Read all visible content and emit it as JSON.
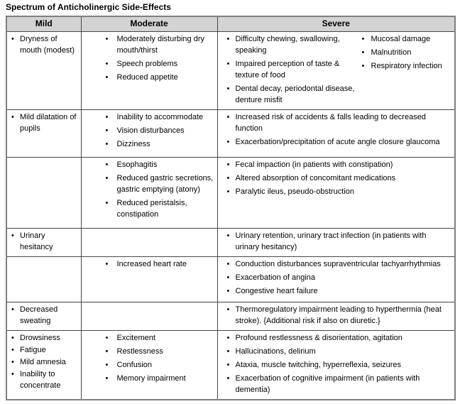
{
  "title": "Spectrum of Anticholinergic Side-Effects",
  "colors": {
    "header_bg": "#d3d3d3",
    "border_outer": "#7f7f7f",
    "border_inner": "#454545",
    "text": "#000000"
  },
  "table": {
    "headers": [
      "Mild",
      "Moderate",
      "Severe"
    ],
    "rows": [
      {
        "mild": [
          "Dryness of mouth (modest)"
        ],
        "moderate": [
          "Moderately disturbing dry mouth/thirst",
          "Speech problems",
          "Reduced appetite"
        ],
        "severe": [
          "Difficulty chewing, swallowing, speaking",
          "Impaired perception of taste & texture of food",
          "Dental decay, periodontal disease, denture misfit"
        ],
        "severe_col2": [
          "Mucosal damage",
          "Malnutrition",
          "Respiratory infection"
        ]
      },
      {
        "mild": [
          "Mild dilatation of pupils"
        ],
        "moderate": [
          "Inability to accommodate",
          "Vision disturbances",
          "Dizziness"
        ],
        "severe": [
          "Increased risk of accidents & falls leading to decreased function",
          "Exacerbation/precipitation of acute angle closure glaucoma"
        ]
      },
      {
        "mild": [],
        "moderate": [
          "Esophagitis",
          "Reduced gastric secretions, gastric emptying (atony)",
          "Reduced peristalsis, constipation"
        ],
        "severe": [
          "Fecal impaction (in patients with constipation)",
          "Altered absorption of concomitant medications",
          "Paralytic ileus, pseudo-obstruction"
        ]
      },
      {
        "mild": [
          "Urinary hesitancy"
        ],
        "moderate": [],
        "severe": [
          "Urinary retention, urinary tract infection (in patients with urinary hesitancy)"
        ]
      },
      {
        "mild": [],
        "moderate": [
          "Increased heart rate"
        ],
        "severe": [
          "Conduction disturbances supraventricular tachyarrhythmias",
          "Exacerbation of angina",
          "Congestive heart failure"
        ]
      },
      {
        "mild": [
          "Decreased sweating"
        ],
        "moderate": [],
        "severe": [
          "Thermoregulatory impairment leading to hyperthermia (heat stroke). {Additional risk if also on diuretic.}"
        ]
      },
      {
        "mild": [
          "Drowsiness",
          "Fatigue",
          "Mild amnesia",
          "Inability to concentrate"
        ],
        "moderate": [
          "Excitement",
          "Restlessness",
          "Confusion",
          "Memory impairment"
        ],
        "severe": [
          "Profound restlessness & disorientation, agitation",
          "Hallucinations, delirium",
          "Ataxia, muscle twitching, hyperreflexia, seizures",
          "Exacerbation of cognitive impairment (in patients with dementia)"
        ]
      }
    ]
  }
}
